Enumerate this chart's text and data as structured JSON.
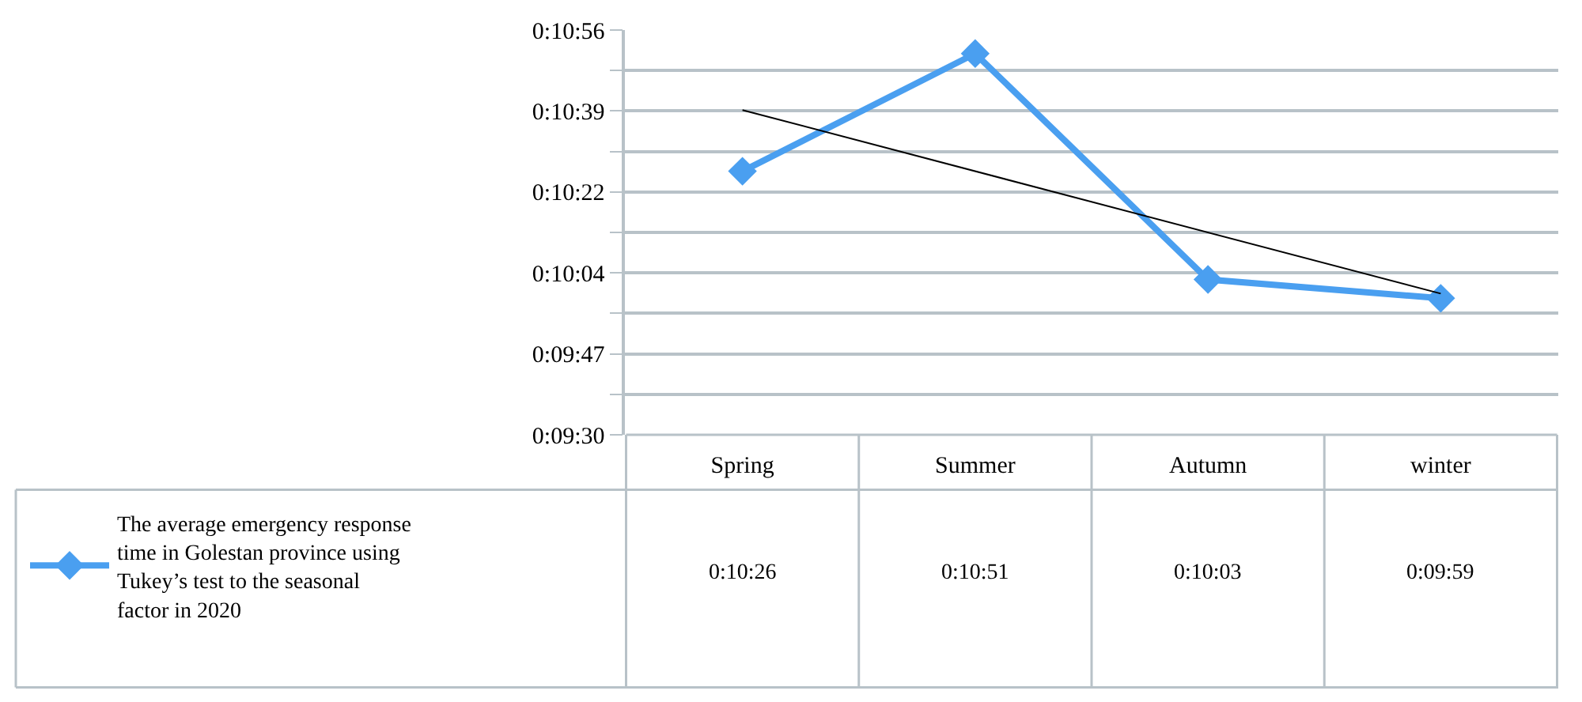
{
  "chart_data": {
    "type": "line",
    "categories": [
      "Spring",
      "Summer",
      "Autumn",
      "winter"
    ],
    "series": [
      {
        "name": "The average emergency response time in Golestan province using Tukey’s test to the seasonal factor in 2020",
        "color": "#4a9ff0",
        "values": [
          626,
          651,
          603,
          599
        ],
        "value_labels": [
          "0:10:26",
          "0:10:51",
          "0:10:03",
          "0:09:59"
        ],
        "marker": "diamond"
      },
      {
        "type": "line",
        "x": [
          "Spring",
          "winter"
        ],
        "values": [
          639,
          600
        ],
        "color": "#000000",
        "marker": "none"
      }
    ],
    "ylim": [
      570,
      656
    ],
    "yticks": [
      {
        "value": 570,
        "label": "0:09:30"
      },
      {
        "value": 578.6,
        "label": null
      },
      {
        "value": 587.2,
        "label": "0:09:47"
      },
      {
        "value": 595.8,
        "label": null
      },
      {
        "value": 604.4,
        "label": "0:10:04"
      },
      {
        "value": 613,
        "label": null
      },
      {
        "value": 621.6,
        "label": "0:10:22"
      },
      {
        "value": 630.2,
        "label": null
      },
      {
        "value": 638.8,
        "label": "0:10:39"
      },
      {
        "value": 647.4,
        "label": null
      },
      {
        "value": 656,
        "label": "0:10:56"
      }
    ],
    "grid": "y",
    "legend": "bottom left"
  }
}
